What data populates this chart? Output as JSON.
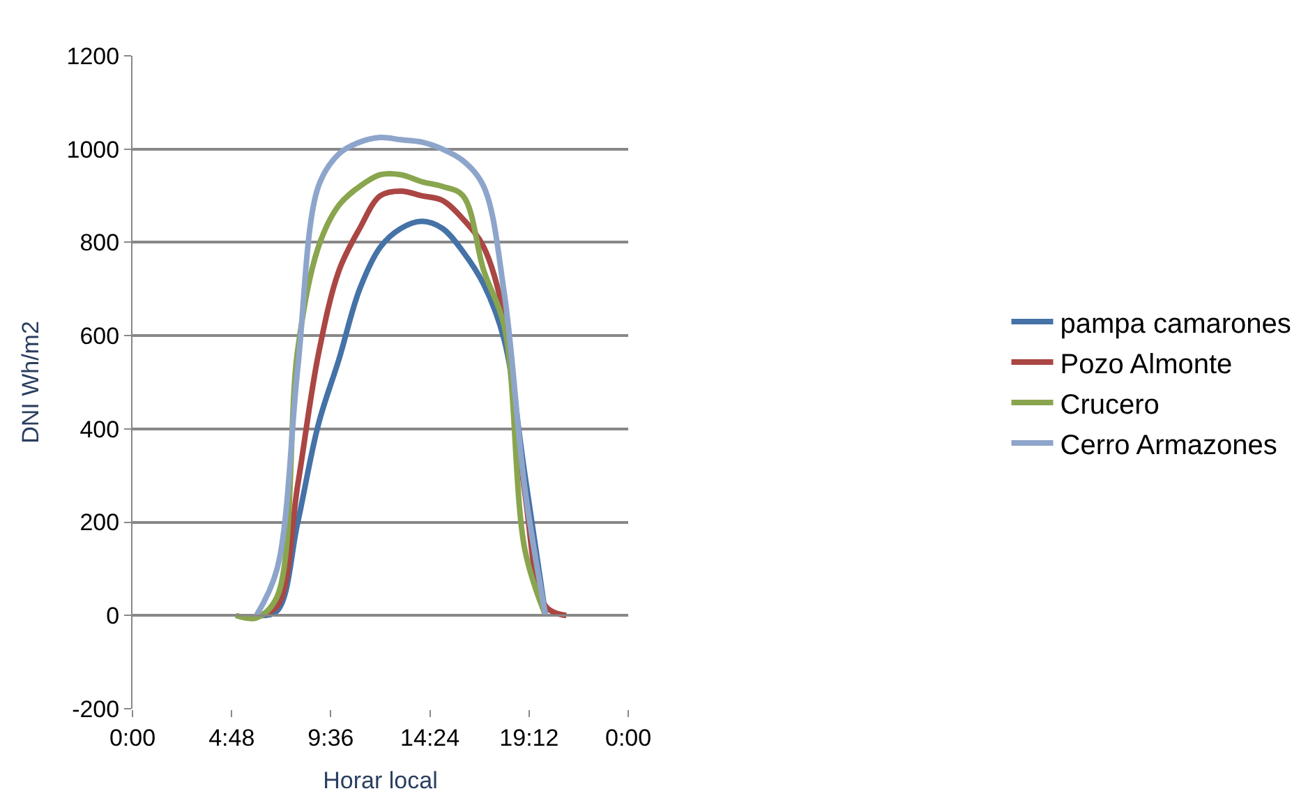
{
  "chart_data": {
    "type": "line",
    "xlabel": "Horar local",
    "ylabel": "DNI Wh/m2",
    "x": [
      5,
      6,
      7,
      8,
      9,
      10,
      11,
      12,
      13,
      14,
      15,
      16,
      17,
      18,
      19,
      20,
      21
    ],
    "xlim": [
      0,
      24
    ],
    "xticks": [
      {
        "value": 0,
        "label": "0:00"
      },
      {
        "value": 4.8,
        "label": "4:48"
      },
      {
        "value": 9.6,
        "label": "9:36"
      },
      {
        "value": 14.4,
        "label": "14:24"
      },
      {
        "value": 19.2,
        "label": "19:12"
      },
      {
        "value": 24,
        "label": "0:00"
      }
    ],
    "ylim": [
      -200,
      1200
    ],
    "yticks": [
      -200,
      0,
      200,
      400,
      600,
      800,
      1000,
      1200
    ],
    "grid": "y",
    "legend": "right",
    "marker": "none",
    "line_style": "solid",
    "series": [
      {
        "name": "pampa camarones",
        "color": "#4572a7",
        "values": [
          null,
          0,
          10,
          200,
          410,
          550,
          700,
          790,
          830,
          845,
          830,
          780,
          710,
          590,
          300,
          0,
          null
        ]
      },
      {
        "name": "Pozo Almonte",
        "color": "#aa4643",
        "values": [
          null,
          0,
          20,
          280,
          560,
          740,
          830,
          900,
          910,
          900,
          890,
          850,
          790,
          640,
          260,
          20,
          0
        ]
      },
      {
        "name": "Crucero",
        "color": "#89a54e",
        "values": [
          0,
          -5,
          40,
          570,
          790,
          880,
          920,
          945,
          945,
          930,
          920,
          900,
          740,
          620,
          140,
          0,
          null
        ]
      },
      {
        "name": "Cerro Armazones",
        "color": "#8ea5cb",
        "values": [
          null,
          0,
          100,
          530,
          920,
          990,
          1015,
          1025,
          1020,
          1015,
          1000,
          975,
          920,
          690,
          270,
          0,
          null
        ]
      }
    ]
  }
}
